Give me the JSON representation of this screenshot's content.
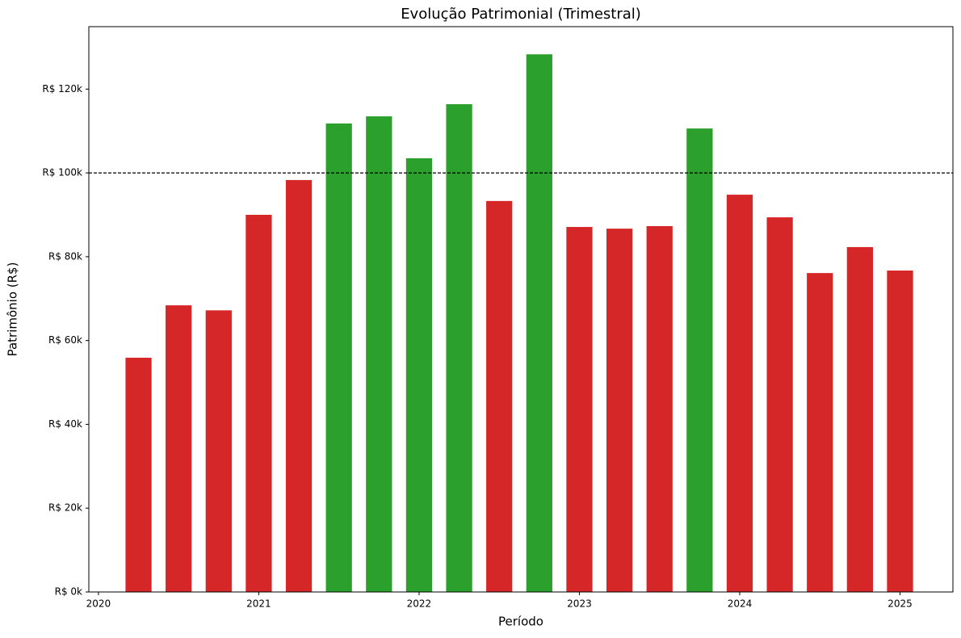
{
  "chart_data": {
    "type": "bar",
    "title": "Evolução Patrimonial (Trimestral)",
    "x_label": "Período",
    "y_label": "Patrimônio (R$)",
    "x": [
      2020.25,
      2020.5,
      2020.75,
      2021.0,
      2021.25,
      2021.5,
      2021.75,
      2022.0,
      2022.25,
      2022.5,
      2022.75,
      2023.0,
      2023.25,
      2023.5,
      2023.75,
      2024.0,
      2024.25,
      2024.5,
      2024.75,
      2025.0
    ],
    "values": [
      55900,
      68400,
      67200,
      90000,
      98300,
      111800,
      113500,
      103500,
      116400,
      93300,
      128300,
      87100,
      86700,
      87300,
      110600,
      94800,
      89400,
      76100,
      82300,
      76700
    ],
    "threshold": 100000,
    "color_above": "#2ca02c",
    "color_below": "#d62728",
    "xlim": [
      2019.94,
      2025.33
    ],
    "xticks": [
      2020,
      2021,
      2022,
      2023,
      2024,
      2025
    ],
    "ylim": [
      0,
      134900
    ],
    "yticks": [
      {
        "value": 0,
        "label": "R$ 0k"
      },
      {
        "value": 20000,
        "label": "R$ 20k"
      },
      {
        "value": 40000,
        "label": "R$ 40k"
      },
      {
        "value": 60000,
        "label": "R$ 60k"
      },
      {
        "value": 80000,
        "label": "R$ 80k"
      },
      {
        "value": 100000,
        "label": "R$ 100k"
      },
      {
        "value": 120000,
        "label": "R$ 120k"
      }
    ]
  }
}
